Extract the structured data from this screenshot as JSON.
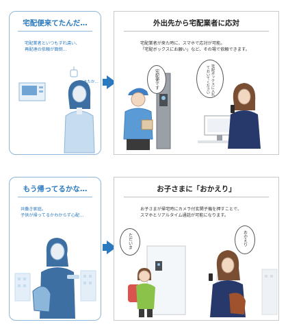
{
  "panels": [
    {
      "title": "宅配便来てたんだ…",
      "body_lines": [
        "宅配業者といつもすれ違い、",
        "再配達の依頼が面倒…"
      ],
      "bubble": "またか…"
    },
    {
      "title": "外出先から宅配業者に応対",
      "body_lines": [
        "宅配業者が来た時に、スマホで応対が可能。",
        "「宅配ボックスにお願い」など、その場で依頼できます。"
      ],
      "bubble_left": "宅配便です",
      "bubble_right": "宅配ボックスに入れておいてください"
    },
    {
      "title": "もう帰ってるかな…",
      "body_lines": [
        "共働き家庭。",
        "子供が帰ってるかわからず心配…"
      ]
    },
    {
      "title": "お子さまに「おかえり」",
      "body_lines": [
        "お子さまが帰宅時にカメラ付玄関子機を押すことで、",
        "スマホとリアルタイム通話が可能になります。"
      ],
      "bubble_left": "ただいま",
      "bubble_right": "おかえり"
    }
  ],
  "colors": {
    "accent": "#2b79bf",
    "border_light": "#8cb6da",
    "figure_fill": "#c6dcef"
  }
}
